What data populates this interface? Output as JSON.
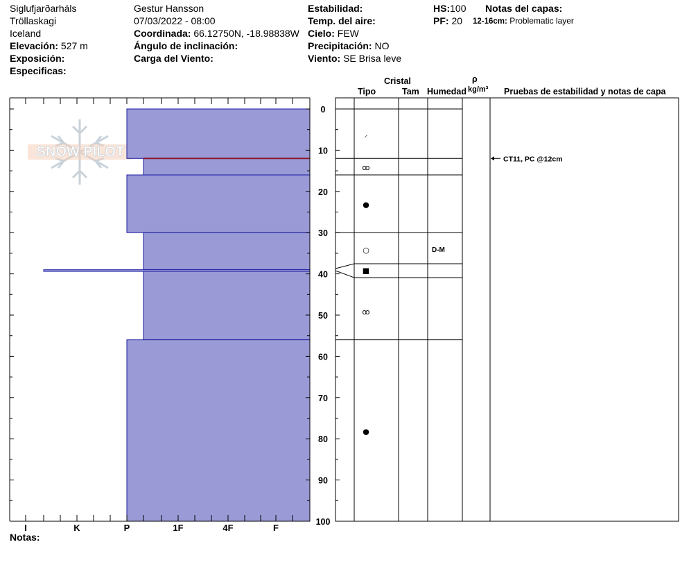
{
  "meta": {
    "location": "Siglufjarðarháls",
    "region": "Tröllaskagi",
    "country": "Iceland",
    "elevation_label": "Elevación:",
    "elevation_value": "527 m",
    "exposure_label": "Exposición:",
    "specifics_label": "Especificas:",
    "observer": "Gestur Hansson",
    "datetime": "07/03/2022 - 08:00",
    "coord_label": "Coordinada:",
    "coord_value": "66.12750N, -18.98838W",
    "slope_label": "Ángulo de inclinación:",
    "wind_load_label": "Carga del Viento:",
    "stability_label": "Estabilidad:",
    "air_temp_label": "Temp. del aire:",
    "sky_label": "Cielo:",
    "sky_value": "FEW",
    "precip_label": "Precipitación:",
    "precip_value": "NO",
    "wind_label": "Viento:",
    "wind_value": "SE  Brisa leve",
    "hs_label": "HS:",
    "hs_value": "100",
    "pf_label": "PF:",
    "pf_value": "20",
    "layer_notes_label": "Notas del capas:",
    "layer_note_range": "12-16cm:",
    "layer_note_text": "Problematic layer",
    "notes_label": "Notas:"
  },
  "watermark": "SNOW PILOT",
  "columns": {
    "crystal": "Cristal",
    "type": "Tipo",
    "size": "Tam",
    "humidity": "Humedad",
    "rho": "ρ",
    "density_unit": "kg/m³",
    "tests": "Pruebas de estabilidad y notas de capa"
  },
  "colors": {
    "layer_fill": "#9a9ad6",
    "layer_stroke": "#1a1aa0",
    "weak_layer": "#8b1a2a"
  },
  "chart_data": {
    "type": "bar",
    "orientation": "horizontal",
    "title": "",
    "xlabel": "",
    "ylabel": "",
    "ylim": [
      0,
      100
    ],
    "y_ticks": [
      "0",
      "10",
      "20",
      "30",
      "40",
      "50",
      "60",
      "70",
      "80",
      "90",
      "100"
    ],
    "hardness_scale": [
      "I",
      "K",
      "P",
      "1F",
      "4F",
      "F"
    ],
    "layers": [
      {
        "top": 0,
        "bottom": 12,
        "hardness": "P"
      },
      {
        "top": 12,
        "bottom": 16,
        "hardness": "P+"
      },
      {
        "top": 16,
        "bottom": 30,
        "hardness": "P"
      },
      {
        "top": 30,
        "bottom": 39,
        "hardness": "P+"
      },
      {
        "top": 39,
        "bottom": 39.4,
        "hardness": "I+"
      },
      {
        "top": 39.4,
        "bottom": 56,
        "hardness": "P+"
      },
      {
        "top": 56,
        "bottom": 100,
        "hardness": "P"
      }
    ],
    "weak_layer_depth": 12,
    "grain_symbols": [
      {
        "depth": 6,
        "symbol": "⸝"
      },
      {
        "depth": 14,
        "symbol": "ꝏ"
      },
      {
        "depth": 23,
        "symbol": "●"
      },
      {
        "depth": 34,
        "symbol": "○"
      },
      {
        "depth": 39,
        "symbol": "■"
      },
      {
        "depth": 49,
        "symbol": "ꝏ"
      },
      {
        "depth": 78,
        "symbol": "●"
      }
    ],
    "humidity": [
      {
        "depth": 34,
        "value": "D-M"
      }
    ],
    "annotations": [
      {
        "depth": 12,
        "text": "CT11, PC @12cm"
      }
    ]
  }
}
